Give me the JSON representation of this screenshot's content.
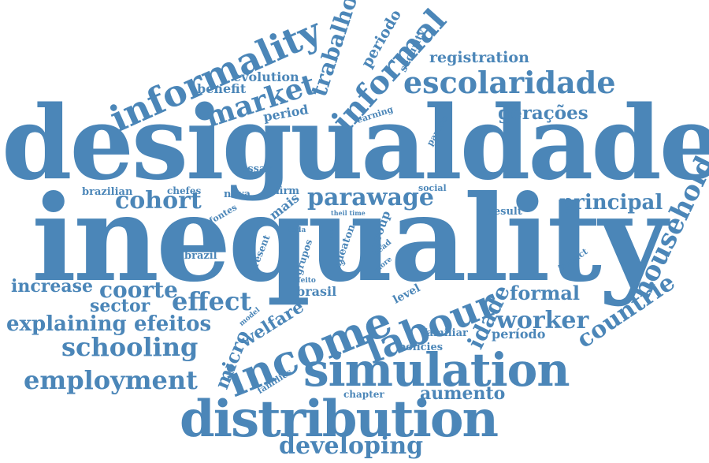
{
  "word_color": "#4b86b8",
  "background": "#ffffff",
  "words": [
    "desigualdade",
    "inequality",
    "distribution",
    "simulation",
    "income",
    "labour",
    "escolaridade",
    "informality",
    "informal",
    "market",
    "trabalho",
    "employment",
    "schooling",
    "explaining",
    "efeitos",
    "effect",
    "coorte",
    "increase",
    "sector",
    "parawage",
    "cohort",
    "principal",
    "household",
    "countrie",
    "worker",
    "formal",
    "idade",
    "developing",
    "aumento",
    "registration",
    "gerações",
    "período",
    "periodo",
    "security",
    "evolution",
    "benefit",
    "period",
    "essay",
    "brazilian",
    "chefes",
    "nova",
    "firm",
    "social",
    "mais",
    "fontes",
    "result",
    "toda",
    "grupos",
    "group",
    "deaton",
    "head",
    "more",
    "rsg",
    "present",
    "brazil",
    "brasil",
    "welfare",
    "micro",
    "model",
    "efeito",
    "level",
    "familiar",
    "policies",
    "chapter",
    "families",
    "impact",
    "earning",
    "paxson",
    "theil time",
    "esse"
  ]
}
